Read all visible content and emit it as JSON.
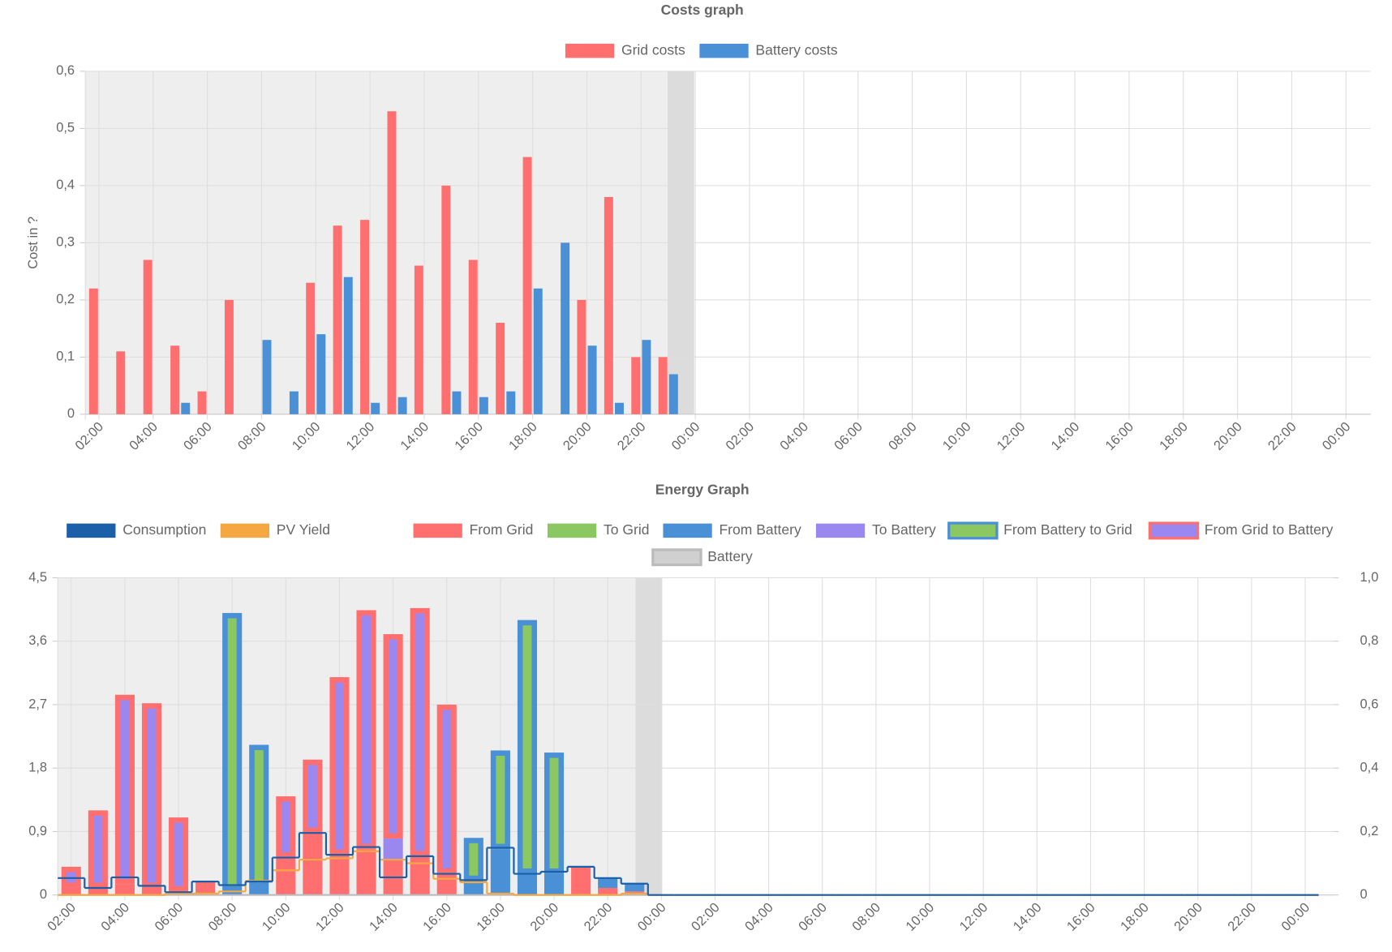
{
  "chart_data": [
    {
      "type": "bar",
      "title": "Costs graph",
      "y_label": "Cost in ?",
      "categories": [
        "02:00",
        null,
        "04:00",
        null,
        "06:00",
        null,
        "08:00",
        null,
        "10:00",
        null,
        "12:00",
        null,
        "14:00",
        null,
        "16:00",
        null,
        "18:00",
        null,
        "20:00",
        null,
        "22:00",
        null,
        "00:00",
        null,
        "02:00",
        null,
        "04:00",
        null,
        "06:00",
        null,
        "08:00",
        null,
        "10:00",
        null,
        "12:00",
        null,
        "14:00",
        null,
        "16:00",
        null,
        "18:00",
        null,
        "20:00",
        null,
        "22:00",
        null,
        "00:00"
      ],
      "series": [
        {
          "name": "Grid costs",
          "color": "#ff6f6f",
          "values": [
            0.22,
            0.11,
            0.27,
            0.12,
            0.04,
            0.2,
            0,
            0,
            0.23,
            0.33,
            0.34,
            0.53,
            0.26,
            0.4,
            0.27,
            0.16,
            0.45,
            0,
            0.2,
            0.38,
            0.1,
            0.1,
            null,
            null,
            null,
            null,
            null,
            null,
            null,
            null,
            null,
            null,
            null,
            null,
            null,
            null,
            null,
            null,
            null,
            null,
            null,
            null,
            null,
            null,
            null,
            null,
            null
          ]
        },
        {
          "name": "Battery costs",
          "color": "#4a90d6",
          "values": [
            0,
            0,
            0,
            0.02,
            0,
            0,
            0.13,
            0.04,
            0.14,
            0.24,
            0.02,
            0.03,
            0,
            0.04,
            0.03,
            0.04,
            0.22,
            0.3,
            0.12,
            0.02,
            0.13,
            0.07,
            null,
            null,
            null,
            null,
            null,
            null,
            null,
            null,
            null,
            null,
            null,
            null,
            null,
            null,
            null,
            null,
            null,
            null,
            null,
            null,
            null,
            null,
            null,
            null,
            null
          ]
        }
      ],
      "ylim": [
        0,
        0.6
      ],
      "yticks": [
        0,
        {
          "value": 0.1,
          "label": "0,1"
        },
        {
          "value": 0.2,
          "label": "0,2"
        },
        {
          "value": 0.3,
          "label": "0,3"
        },
        {
          "value": 0.4,
          "label": "0,4"
        },
        {
          "value": 0.5,
          "label": "0,5"
        },
        {
          "value": 0.6,
          "label": "0,6"
        }
      ],
      "grid": true,
      "legend": "top"
    },
    {
      "type": "combo",
      "title": "Energy Graph",
      "categories": [
        "02:00",
        null,
        "04:00",
        null,
        "06:00",
        null,
        "08:00",
        null,
        "10:00",
        null,
        "12:00",
        null,
        "14:00",
        null,
        "16:00",
        null,
        "18:00",
        null,
        "20:00",
        null,
        "22:00",
        null,
        "00:00",
        null,
        "02:00",
        null,
        "04:00",
        null,
        "06:00",
        null,
        "08:00",
        null,
        "10:00",
        null,
        "12:00",
        null,
        "14:00",
        null,
        "16:00",
        null,
        "18:00",
        null,
        "20:00",
        null,
        "22:00",
        null,
        "00:00"
      ],
      "series": [
        {
          "name": "Consumption",
          "kind": "line",
          "color": "#1a5fa8",
          "values": [
            0.24,
            0.1,
            0.25,
            0.13,
            0.04,
            0.19,
            0.14,
            0.19,
            0.53,
            0.88,
            0.57,
            0.68,
            0.25,
            0.55,
            0.3,
            0.21,
            0.67,
            0.3,
            0.33,
            0.4,
            0.24,
            0.16,
            0,
            0,
            0,
            0,
            0,
            0,
            0,
            0,
            0,
            0,
            0,
            0,
            0,
            0,
            0,
            0,
            0,
            0,
            0,
            0,
            0,
            0,
            0,
            0,
            0
          ]
        },
        {
          "name": "PV Yield",
          "kind": "line",
          "color": "#f5a742",
          "values": [
            0,
            0,
            0,
            0,
            0.02,
            0.02,
            0.05,
            0.2,
            0.35,
            0.5,
            0.52,
            0.62,
            0.5,
            0.45,
            0.23,
            0.18,
            0.02,
            0,
            0,
            0,
            0,
            0.02,
            0,
            0,
            0,
            0,
            0,
            0,
            0,
            0,
            0,
            0,
            0,
            0,
            0,
            0,
            0,
            0,
            0,
            0,
            0,
            0,
            0,
            0,
            0,
            0,
            0
          ]
        },
        {
          "name": "From Grid",
          "kind": "bar",
          "color": "#ff6f6f",
          "values": [
            0.1,
            0.1,
            0.15,
            0.1,
            0.05,
            0.2,
            0,
            0,
            0.53,
            0.88,
            0.57,
            0.65,
            0.5,
            0.55,
            0.3,
            0,
            0,
            0,
            0,
            0.4,
            0.1,
            0.05,
            null,
            null,
            null,
            null,
            null,
            null,
            null,
            null,
            null,
            null,
            null,
            null,
            null,
            null,
            null,
            null,
            null,
            null,
            null,
            null,
            null,
            null,
            null,
            null,
            null
          ]
        },
        {
          "name": "To Grid",
          "kind": "bar",
          "color": "#8bc861",
          "values": [
            0,
            0,
            0,
            0,
            0,
            0,
            0,
            0,
            0,
            0,
            0,
            0,
            0,
            0,
            0,
            0,
            0,
            0,
            0,
            0,
            0,
            0,
            null,
            null,
            null,
            null,
            null,
            null,
            null,
            null,
            null,
            null,
            null,
            null,
            null,
            null,
            null,
            null,
            null,
            null,
            null,
            null,
            null,
            null,
            null,
            null,
            null
          ]
        },
        {
          "name": "From Battery",
          "kind": "bar",
          "color": "#4a90d6",
          "values": [
            0,
            0,
            0,
            0,
            0,
            0,
            0.05,
            0.1,
            0,
            0,
            0,
            0,
            0,
            0,
            0,
            0.2,
            0.65,
            0.3,
            0.3,
            0,
            0.14,
            0.12,
            null,
            null,
            null,
            null,
            null,
            null,
            null,
            null,
            null,
            null,
            null,
            null,
            null,
            null,
            null,
            null,
            null,
            null,
            null,
            null,
            null,
            null,
            null,
            null,
            null
          ]
        },
        {
          "name": "To Battery",
          "kind": "bar",
          "color": "#9b87f0",
          "values": [
            0,
            0,
            0,
            0,
            0,
            0,
            0,
            0,
            0,
            0,
            0,
            0,
            0.3,
            0,
            0,
            0,
            0,
            0,
            0,
            0,
            0,
            0,
            null,
            null,
            null,
            null,
            null,
            null,
            null,
            null,
            null,
            null,
            null,
            null,
            null,
            null,
            null,
            null,
            null,
            null,
            null,
            null,
            null,
            null,
            null,
            null,
            null
          ]
        },
        {
          "name": "From Battery to Grid",
          "kind": "bar",
          "color": "#8bc861",
          "border": "#4a90d6",
          "values": [
            0,
            0,
            0,
            0,
            0,
            0,
            3.95,
            2.03,
            0,
            0,
            0,
            0,
            0,
            0,
            0,
            0.61,
            1.4,
            3.6,
            1.72,
            0,
            0,
            0,
            null,
            null,
            null,
            null,
            null,
            null,
            null,
            null,
            null,
            null,
            null,
            null,
            null,
            null,
            null,
            null,
            null,
            null,
            null,
            null,
            null,
            null,
            null,
            null,
            null
          ]
        },
        {
          "name": "From Grid to Battery",
          "kind": "bar",
          "color": "#9b87f0",
          "border": "#ff6f6f",
          "values": [
            0.3,
            1.1,
            2.69,
            2.62,
            1.05,
            0,
            0,
            0,
            0.87,
            1.04,
            2.52,
            3.39,
            2.9,
            3.52,
            2.4,
            0,
            0,
            0,
            0,
            0,
            0,
            0,
            null,
            null,
            null,
            null,
            null,
            null,
            null,
            null,
            null,
            null,
            null,
            null,
            null,
            null,
            null,
            null,
            null,
            null,
            null,
            null,
            null,
            null,
            null,
            null,
            null
          ]
        },
        {
          "name": "Battery",
          "kind": "line",
          "axis": "y2",
          "color": "#d0d0d0",
          "border": "#bbbbbb",
          "values": [
            0,
            0,
            0,
            0,
            0,
            0,
            0,
            0,
            0,
            0,
            0,
            0,
            0,
            0,
            0,
            0,
            0,
            0,
            0,
            0,
            0,
            0,
            null,
            null,
            null,
            null,
            null,
            null,
            null,
            null,
            null,
            null,
            null,
            null,
            null,
            null,
            null,
            null,
            null,
            null,
            null,
            null,
            null,
            null,
            null,
            null,
            null
          ]
        }
      ],
      "ylim": [
        0,
        4.5
      ],
      "yticks": [
        0,
        {
          "value": 0.9,
          "label": "0,9"
        },
        {
          "value": 1.8,
          "label": "1,8"
        },
        {
          "value": 2.7,
          "label": "2,7"
        },
        {
          "value": 3.6,
          "label": "3,6"
        },
        {
          "value": 4.5,
          "label": "4,5"
        }
      ],
      "y2lim": [
        0,
        1
      ],
      "y2ticks": [
        0,
        {
          "value": 0.2,
          "label": "0,2"
        },
        {
          "value": 0.4,
          "label": "0,4"
        },
        {
          "value": 0.6,
          "label": "0,6"
        },
        {
          "value": 0.8,
          "label": "0,8"
        },
        {
          "value": 1,
          "label": "1,0"
        }
      ],
      "grid": true,
      "legend": "top"
    }
  ]
}
